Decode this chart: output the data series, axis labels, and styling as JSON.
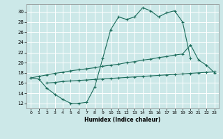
{
  "xlabel": "Humidex (Indice chaleur)",
  "bg_color": "#cce8e8",
  "grid_color": "#ffffff",
  "line_color": "#1a6b5a",
  "xlim": [
    -0.5,
    23.5
  ],
  "ylim": [
    11.0,
    31.5
  ],
  "yticks": [
    12,
    14,
    16,
    18,
    20,
    22,
    24,
    26,
    28,
    30
  ],
  "xticks": [
    0,
    1,
    2,
    3,
    4,
    5,
    6,
    7,
    8,
    9,
    10,
    11,
    12,
    13,
    14,
    15,
    16,
    17,
    18,
    19,
    20,
    21,
    22,
    23
  ],
  "line1_x": [
    0,
    1,
    2,
    3,
    4,
    5,
    6,
    7,
    8,
    9,
    10,
    11,
    12,
    13,
    14,
    15,
    16,
    17,
    18,
    19,
    20
  ],
  "line1_y": [
    17.0,
    16.8,
    15.0,
    13.8,
    12.8,
    12.0,
    12.0,
    12.2,
    15.2,
    20.8,
    26.5,
    29.0,
    28.5,
    29.0,
    30.8,
    30.2,
    29.0,
    29.8,
    30.2,
    28.0,
    20.8
  ],
  "line2_x": [
    0,
    1,
    2,
    3,
    4,
    5,
    6,
    7,
    8,
    9,
    10,
    11,
    12,
    13,
    14,
    15,
    16,
    17,
    18,
    19,
    20,
    21,
    22,
    23
  ],
  "line2_y": [
    17.0,
    17.3,
    17.6,
    17.9,
    18.1,
    18.4,
    18.6,
    18.8,
    19.0,
    19.3,
    19.5,
    19.7,
    20.0,
    20.2,
    20.5,
    20.7,
    21.0,
    21.2,
    21.5,
    21.7,
    23.5,
    20.5,
    19.5,
    18.0
  ],
  "line3_x": [
    2,
    3,
    4,
    5,
    6,
    7,
    8,
    9,
    10,
    11,
    12,
    13,
    14,
    15,
    16,
    17,
    18,
    19,
    20,
    21,
    22,
    23
  ],
  "line3_y": [
    16.0,
    16.1,
    16.3,
    16.4,
    16.5,
    16.6,
    16.7,
    16.8,
    16.9,
    17.0,
    17.1,
    17.2,
    17.3,
    17.4,
    17.5,
    17.6,
    17.7,
    17.8,
    17.9,
    18.0,
    18.1,
    18.2
  ]
}
